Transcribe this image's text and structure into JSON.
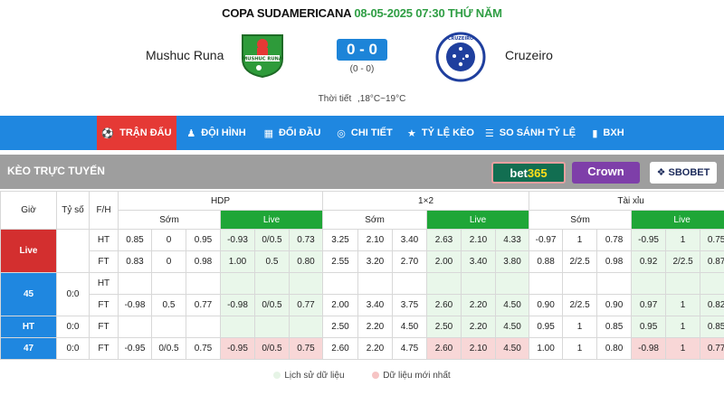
{
  "match": {
    "league": "COPA SUDAMERICANA",
    "datetime": "08-05-2025 07:30 THỨ NĂM",
    "home": "Mushuc Runa",
    "away": "Cruzeiro",
    "score": "0 - 0",
    "ht_score": "(0 - 0)",
    "weather_label": "Thời tiết",
    "weather_value": ",18°C~19°C",
    "home_logo_text": "MUSHUC RUNA",
    "away_logo_text": "CRUZEIRO"
  },
  "nav": [
    {
      "label": "TRẬN ĐẤU",
      "icon": "soccer-ball-icon",
      "glyph": "⚽",
      "active": true
    },
    {
      "label": "ĐỘI HÌNH",
      "icon": "people-icon",
      "glyph": "👥",
      "active": false
    },
    {
      "label": "ĐỐI ĐẦU",
      "icon": "versus-icon",
      "glyph": "⚔",
      "active": false
    },
    {
      "label": "CHI TIẾT",
      "icon": "detail-icon",
      "glyph": "◎",
      "active": false
    },
    {
      "label": "TỶ LỆ KÈO",
      "icon": "star-icon",
      "glyph": "★",
      "active": false
    },
    {
      "label": "SO SÁNH TỶ LỆ",
      "icon": "list-icon",
      "glyph": "☰",
      "active": false
    },
    {
      "label": "BXH",
      "icon": "bar-chart-icon",
      "glyph": "▮",
      "active": false
    }
  ],
  "odds": {
    "title": "KÈO TRỰC TUYẾN",
    "bookmakers": {
      "bet365_a": "bet",
      "bet365_b": "365",
      "crown": "Crown",
      "sbobet": "SBOBET"
    }
  },
  "table": {
    "headers": {
      "gio": "Giờ",
      "tyso": "Tỷ số",
      "fh": "F/H",
      "hdp": "HDP",
      "x12": "1×2",
      "taixiu": "Tài xỉu",
      "som": "Sớm",
      "live": "Live"
    },
    "rows": [
      {
        "time": "Live",
        "score": "",
        "fh": "HT",
        "time_style": "red",
        "hdp_early": [
          "0.85",
          "0",
          "0.95"
        ],
        "hdp_live": [
          "-0.93",
          "0/0.5",
          "0.73"
        ],
        "x12_early": [
          "3.25",
          "2.10",
          "3.40"
        ],
        "x12_live": [
          "2.63",
          "2.10",
          "4.33"
        ],
        "tx_early": [
          "-0.97",
          "1",
          "0.78"
        ],
        "tx_live": [
          "-0.95",
          "1",
          "0.75"
        ]
      },
      {
        "time": "",
        "score": "",
        "fh": "FT",
        "time_style": "red",
        "hdp_early": [
          "0.83",
          "0",
          "0.98"
        ],
        "hdp_live": [
          "1.00",
          "0.5",
          "0.80"
        ],
        "x12_early": [
          "2.55",
          "3.20",
          "2.70"
        ],
        "x12_live": [
          "2.00",
          "3.40",
          "3.80"
        ],
        "tx_early": [
          "0.88",
          "2/2.5",
          "0.98"
        ],
        "tx_live": [
          "0.92",
          "2/2.5",
          "0.87"
        ]
      },
      {
        "time": "45",
        "score": "0:0",
        "fh": "HT",
        "time_style": "blue",
        "hdp_early": [
          "",
          "",
          ""
        ],
        "hdp_live": [
          "",
          "",
          ""
        ],
        "x12_early": [
          "",
          "",
          ""
        ],
        "x12_live": [
          "",
          "",
          ""
        ],
        "tx_early": [
          "",
          "",
          ""
        ],
        "tx_live": [
          "",
          "",
          ""
        ]
      },
      {
        "time": "",
        "score": "",
        "fh": "FT",
        "time_style": "blue",
        "hdp_early": [
          "-0.98",
          "0.5",
          "0.77"
        ],
        "hdp_live": [
          "-0.98",
          "0/0.5",
          "0.77"
        ],
        "x12_early": [
          "2.00",
          "3.40",
          "3.75"
        ],
        "x12_live": [
          "2.60",
          "2.20",
          "4.50"
        ],
        "tx_early": [
          "0.90",
          "2/2.5",
          "0.90"
        ],
        "tx_live": [
          "0.97",
          "1",
          "0.82"
        ]
      },
      {
        "time": "HT",
        "score": "0:0",
        "fh": "FT",
        "time_style": "blue",
        "hdp_early": [
          "",
          "",
          ""
        ],
        "hdp_live": [
          "",
          "",
          ""
        ],
        "x12_early": [
          "2.50",
          "2.20",
          "4.50"
        ],
        "x12_live": [
          "2.50",
          "2.20",
          "4.50"
        ],
        "tx_early": [
          "0.95",
          "1",
          "0.85"
        ],
        "tx_live": [
          "0.95",
          "1",
          "0.85"
        ]
      },
      {
        "time": "47",
        "score": "0:0",
        "fh": "FT",
        "time_style": "blue",
        "hdp_early": [
          "-0.95",
          "0/0.5",
          "0.75"
        ],
        "hdp_live": [
          "-0.95",
          "0/0.5",
          "0.75"
        ],
        "x12_early": [
          "2.60",
          "2.20",
          "4.75"
        ],
        "x12_live": [
          "2.60",
          "2.10",
          "4.50"
        ],
        "tx_early": [
          "1.00",
          "1",
          "0.80"
        ],
        "tx_live": [
          "-0.98",
          "1",
          "0.77"
        ]
      }
    ]
  },
  "legend": {
    "history": "Lịch sử dữ liệu",
    "latest": "Dữ liệu mới nhất"
  },
  "colors": {
    "nav": "#1f87e0",
    "active": "#e53935",
    "live_header": "#1fa637",
    "green_cell": "#e9f7ea",
    "pink_cell": "#f8d7d7"
  }
}
